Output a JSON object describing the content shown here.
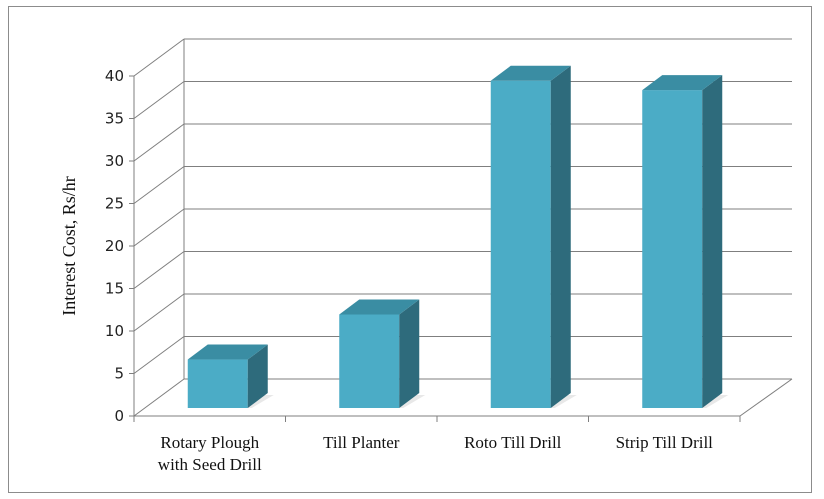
{
  "chart_data": {
    "type": "bar",
    "title": "",
    "xlabel": "",
    "ylabel": "Interest Cost, Rs/hr",
    "categories": [
      "Rotary Plough with Seed Drill",
      "Till Planter",
      "Roto Till Drill",
      "Strip Till Drill"
    ],
    "category_lines": [
      [
        "Rotary Plough",
        "with Seed Drill"
      ],
      [
        "Till Planter"
      ],
      [
        "Roto Till Drill"
      ],
      [
        "Strip Till Drill"
      ]
    ],
    "values": [
      5.7,
      11.0,
      38.5,
      37.4
    ],
    "ylim": [
      0,
      40
    ],
    "yticks": [
      0,
      5,
      10,
      15,
      20,
      25,
      30,
      35,
      40
    ],
    "grid": true,
    "legend": "none",
    "style": "3d-column",
    "colors": {
      "front": "#4bacc6",
      "side": "#2e6b7c",
      "top": "#3a8da3",
      "grid": "#7f7f7f"
    }
  }
}
